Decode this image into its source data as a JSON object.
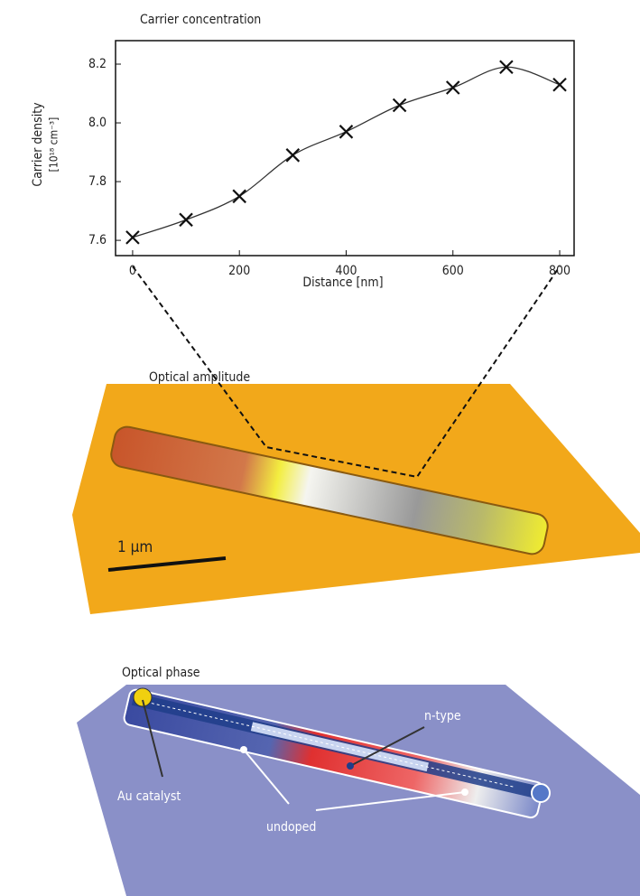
{
  "chart_data": {
    "type": "line",
    "title": "Carrier concentration",
    "x_label": "Distance [nm]",
    "y_label": [
      "Carrier density",
      "[10¹⁸ cm⁻³]"
    ],
    "x": [
      0,
      100,
      200,
      300,
      400,
      500,
      600,
      700,
      800
    ],
    "series": [
      {
        "color": "#333333",
        "values": [
          7.61,
          7.67,
          7.75,
          7.89,
          7.97,
          8.06,
          8.12,
          8.19,
          8.13
        ]
      }
    ],
    "xlim": [
      -32,
      827
    ],
    "xticks": [
      0,
      200,
      400,
      600,
      800
    ],
    "ylim": [
      7.548,
      8.28
    ],
    "yticks": [
      {
        "value": 7.6,
        "label": "7.6"
      },
      {
        "value": 7.8,
        "label": "7.8"
      },
      {
        "value": 8,
        "label": "8.0"
      },
      {
        "value": 8.2,
        "label": "8.2"
      }
    ],
    "grid": false
  },
  "figure": {
    "amplitude_label": "Optical amplitude",
    "scale_bar": "1 µm",
    "phase_label": "Optical phase",
    "n_type": "n-type",
    "au_catalyst": "Au catalyst",
    "undoped": "undoped"
  }
}
